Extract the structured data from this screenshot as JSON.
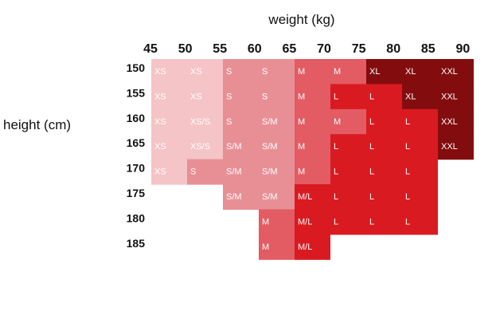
{
  "chart_data": {
    "type": "heatmap",
    "title": "weight (kg)",
    "ylabel": "height (cm)",
    "x_ticks": [
      45,
      50,
      55,
      60,
      65,
      70,
      75,
      80,
      85,
      90
    ],
    "y_ticks": [
      150,
      155,
      160,
      165,
      170,
      175,
      180,
      185
    ],
    "size_colors": {
      "XS": "#f4c4c6",
      "XS/S": "#f4c4c6",
      "S": "#e88f96",
      "S/M": "#e88f96",
      "M": "#e35b63",
      "M/L": "#da1a21",
      "L": "#da1a21",
      "XL": "#830d0e",
      "XXL": "#830d0e"
    },
    "rows": [
      {
        "height": 150,
        "sizes": [
          "XS",
          "XS",
          "S",
          "S",
          "M",
          "M",
          "XL",
          "XL",
          "XXL"
        ]
      },
      {
        "height": 155,
        "sizes": [
          "XS",
          "XS",
          "S",
          "S",
          "M",
          "L",
          "L",
          "XL",
          "XXL"
        ]
      },
      {
        "height": 160,
        "sizes": [
          "XS",
          "XS/S",
          "S",
          "S/M",
          "M",
          "M",
          "L",
          "L",
          "XXL"
        ]
      },
      {
        "height": 165,
        "sizes": [
          "XS",
          "XS/S",
          "S/M",
          "S/M",
          "M",
          "L",
          "L",
          "L",
          "XXL"
        ]
      },
      {
        "height": 170,
        "sizes": [
          "XS",
          "S",
          "S/M",
          "S/M",
          "M",
          "L",
          "L",
          "L",
          null
        ]
      },
      {
        "height": 175,
        "sizes": [
          null,
          null,
          "S/M",
          "S/M",
          "M/L",
          "L",
          "L",
          "L",
          null
        ]
      },
      {
        "height": 180,
        "sizes": [
          null,
          null,
          null,
          "M",
          "M/L",
          "L",
          "L",
          "L",
          null
        ]
      },
      {
        "height": 185,
        "sizes": [
          null,
          null,
          null,
          "M",
          "M/L",
          null,
          null,
          null,
          null
        ]
      }
    ]
  }
}
